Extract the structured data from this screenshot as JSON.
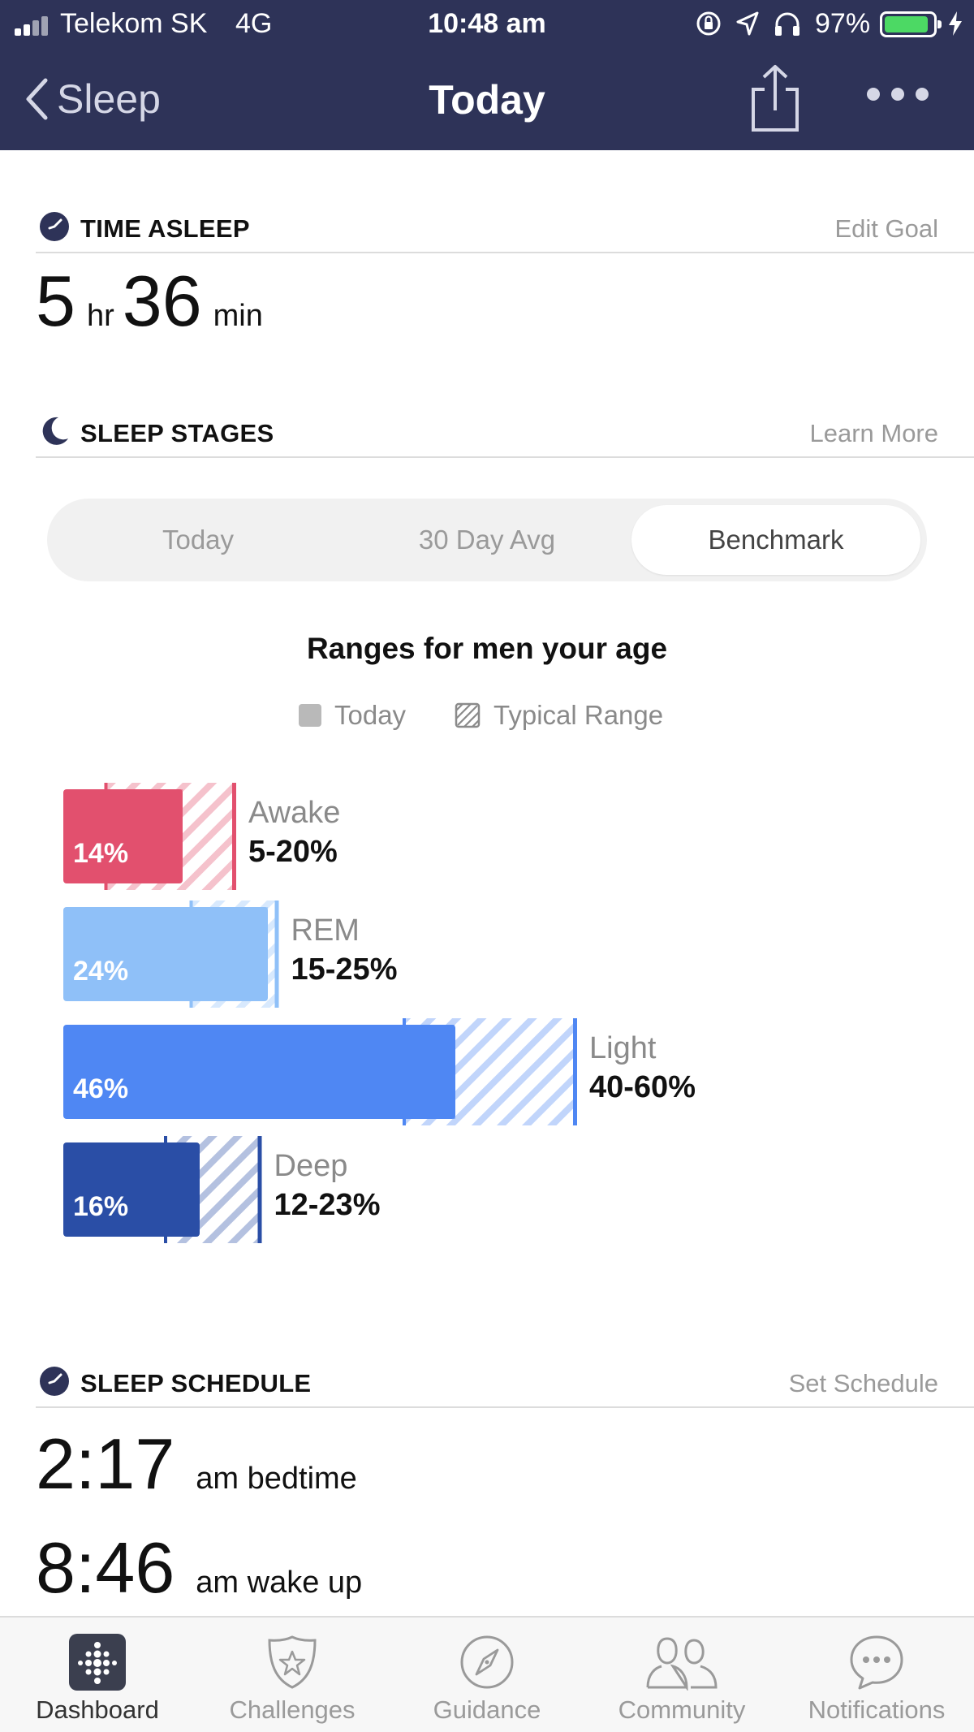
{
  "status_bar": {
    "carrier": "Telekom SK",
    "network": "4G",
    "time": "10:48 am",
    "battery_pct": "97%",
    "battery_level": 0.97
  },
  "nav": {
    "back_label": "Sleep",
    "title": "Today"
  },
  "time_asleep": {
    "header": "TIME ASLEEP",
    "link": "Edit Goal",
    "hours": "5",
    "hours_unit": "hr",
    "minutes": "36",
    "minutes_unit": "min"
  },
  "sleep_stages": {
    "header": "SLEEP STAGES",
    "link": "Learn More",
    "tabs": [
      {
        "label": "Today"
      },
      {
        "label": "30 Day Avg"
      },
      {
        "label": "Benchmark"
      }
    ],
    "active_tab": 2,
    "chart_title": "Ranges for men your age",
    "legend": {
      "today": "Today",
      "typical": "Typical Range"
    }
  },
  "chart_data": {
    "type": "bar",
    "title": "Ranges for men your age",
    "legend": [
      "Today",
      "Typical Range"
    ],
    "categories": [
      "Awake",
      "REM",
      "Light",
      "Deep"
    ],
    "series": [
      {
        "name": "Today",
        "values": [
          14,
          24,
          46,
          16
        ],
        "labels": [
          "14%",
          "24%",
          "46%",
          "16%"
        ]
      },
      {
        "name": "Typical Range",
        "low": [
          5,
          15,
          40,
          12
        ],
        "high": [
          20,
          25,
          60,
          23
        ],
        "labels": [
          "5-20%",
          "15-25%",
          "40-60%",
          "12-23%"
        ]
      }
    ],
    "colors": [
      "#e2506e",
      "#8fc0f8",
      "#4f87f3",
      "#2a4ea6"
    ]
  },
  "sleep_schedule": {
    "header": "SLEEP SCHEDULE",
    "link": "Set Schedule",
    "bedtime": "2:17",
    "bedtime_label": "am bedtime",
    "wakeup": "8:46",
    "wakeup_label": "am wake up"
  },
  "tab_bar": {
    "active": 0,
    "items": [
      {
        "label": "Dashboard",
        "icon": "dashboard-icon"
      },
      {
        "label": "Challenges",
        "icon": "challenges-icon"
      },
      {
        "label": "Guidance",
        "icon": "compass-icon"
      },
      {
        "label": "Community",
        "icon": "community-icon"
      },
      {
        "label": "Notifications",
        "icon": "notifications-icon"
      }
    ]
  },
  "colors": {
    "header_bg": "#2e3358",
    "accent_navy": "#2e3358",
    "awake": "#e2506e",
    "rem": "#8fc0f8",
    "light": "#4f87f3",
    "deep": "#2a4ea6"
  }
}
